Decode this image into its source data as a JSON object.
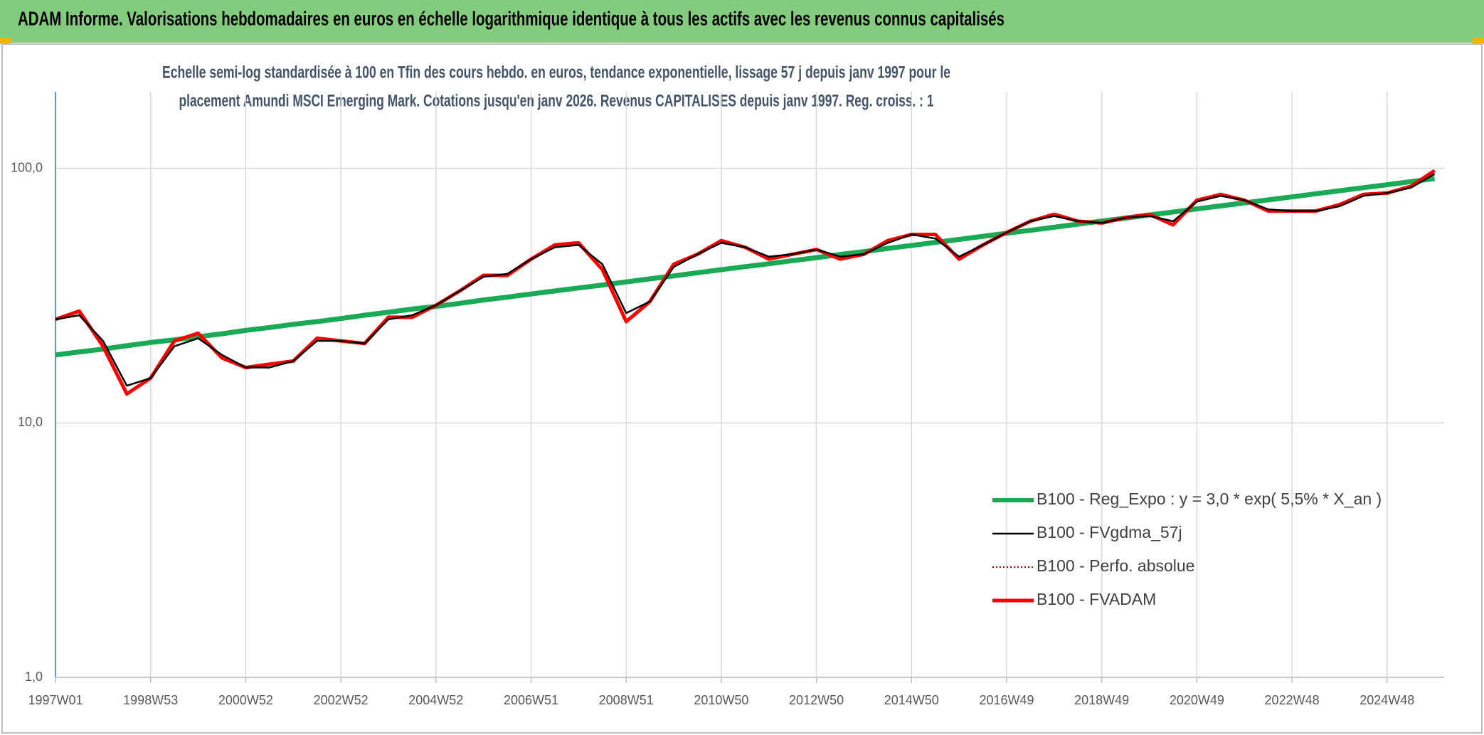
{
  "header": {
    "title": "ADAM Informe. Valorisations hebdomadaires en euros en échelle logarithmique identique à tous les actifs avec les revenus connus capitalisés"
  },
  "chart_data": {
    "type": "line",
    "title": [
      "Echelle semi-log standardisée à 100 en Tfin des cours hebdo. en euros, tendance exponentielle, lissage 57 j depuis janv 1997 pour le",
      "placement Amundi MSCI Emerging Mark. Cotations jusqu'en janv 2026. Revenus CAPITALISES depuis janv 1997. Reg. croiss. : 1"
    ],
    "categories": [
      "1997W01",
      null,
      null,
      null,
      "1998W53",
      null,
      null,
      null,
      "2000W52",
      null,
      null,
      null,
      "2002W52",
      null,
      null,
      null,
      "2004W52",
      null,
      null,
      null,
      "2006W51",
      null,
      null,
      null,
      "2008W51",
      null,
      null,
      null,
      "2010W50",
      null,
      null,
      null,
      "2012W50",
      null,
      null,
      null,
      "2014W50",
      null,
      null,
      null,
      "2016W49",
      null,
      null,
      null,
      "2018W49",
      null,
      null,
      null,
      "2020W49",
      null,
      null,
      null,
      "2022W48",
      null,
      null,
      null,
      "2024W48",
      null,
      null
    ],
    "series": [
      {
        "name": "B100 - Reg_Expo : y = 3,0 * exp( 5,5% *  X_an )",
        "color": "#1aaa55",
        "dash": "solid",
        "values": [
          18.5,
          19.0,
          19.5,
          20.1,
          20.7,
          21.2,
          21.8,
          22.4,
          23.1,
          23.7,
          24.4,
          25.0,
          25.7,
          26.5,
          27.2,
          28.0,
          28.7,
          29.5,
          30.4,
          31.2,
          32.1,
          33.0,
          33.9,
          34.8,
          35.8,
          36.8,
          37.8,
          38.9,
          40.0,
          41.1,
          42.2,
          43.4,
          44.6,
          45.9,
          47.1,
          48.5,
          49.8,
          51.2,
          52.6,
          54.1,
          55.6,
          57.1,
          58.7,
          60.4,
          62.1,
          63.8,
          65.6,
          67.4,
          69.3,
          71.2,
          73.2,
          75.2,
          77.3,
          79.5,
          81.7,
          84.0,
          86.3,
          88.7,
          91.2
        ]
      },
      {
        "name": "B100 - FVgdma_57j",
        "color": "#000000",
        "dash": "solid",
        "values": [
          25.5,
          26.5,
          21,
          14,
          15,
          20,
          21.5,
          18.5,
          16.5,
          16.5,
          17.5,
          21,
          21,
          20.5,
          25.5,
          26.5,
          29,
          33,
          37.5,
          38.5,
          44,
          49,
          50,
          42,
          27,
          30,
          41,
          46,
          51,
          49,
          45,
          46,
          48,
          45,
          46,
          51,
          55,
          53,
          45,
          50,
          56,
          62,
          65,
          62,
          61,
          64,
          65,
          62,
          74,
          78,
          75,
          69,
          68,
          68,
          71,
          78,
          80,
          84,
          95
        ]
      },
      {
        "name": "B100 - Perfo. absolue",
        "color": "#c00000",
        "dash": "dotted",
        "values": [
          25.5,
          27.5,
          20,
          13,
          15,
          21,
          22.5,
          18,
          16.5,
          17,
          17.5,
          21.5,
          21,
          20.5,
          26,
          26,
          29,
          33,
          38,
          38,
          44,
          50,
          51,
          40,
          25,
          30,
          42,
          46,
          52,
          49,
          44,
          46,
          48,
          44,
          46,
          52,
          55,
          55,
          44,
          50,
          56,
          62,
          66,
          62,
          61,
          64,
          66,
          60,
          75,
          79,
          75,
          68,
          68,
          68,
          72,
          79,
          80,
          85,
          98
        ]
      },
      {
        "name": "B100 - FVADAM",
        "color": "#ff0000",
        "dash": "solid",
        "values": [
          25.5,
          27.5,
          20,
          13,
          15,
          21,
          22.5,
          18,
          16.5,
          17,
          17.5,
          21.5,
          21,
          20.5,
          26,
          26,
          29,
          33,
          38,
          38,
          44,
          50,
          51,
          40,
          25,
          30,
          42,
          46,
          52,
          49,
          44,
          46,
          48,
          44,
          46,
          52,
          55,
          55,
          44,
          50,
          56,
          62,
          66,
          62,
          61,
          64,
          66,
          60,
          75,
          79,
          75,
          68,
          68,
          68,
          72,
          79,
          80,
          85,
          98
        ]
      }
    ],
    "ylim": [
      1,
      200
    ],
    "log_y": true,
    "yticks": [
      {
        "value": 1,
        "label": "1,0"
      },
      {
        "value": 10,
        "label": "10,0"
      },
      {
        "value": 100,
        "label": "100,0"
      }
    ],
    "grid": true,
    "legend": "lower right"
  }
}
